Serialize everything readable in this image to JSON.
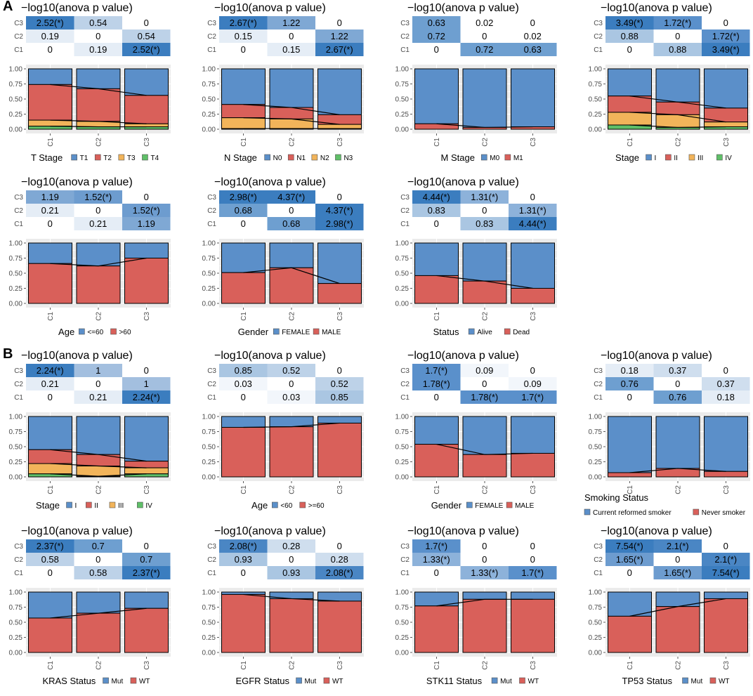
{
  "sections": [
    "A",
    "B"
  ],
  "colors": {
    "blue": "#5b8fc9",
    "red": "#d9605a",
    "orange": "#f2b45a",
    "green": "#5fbf68",
    "sig_dark": "#3b7dbf",
    "panel_bg": "#ebebeb",
    "grid": "#ffffff",
    "axis_text": "#4d4d4d",
    "connector": "#000000"
  },
  "common": {
    "heatmap_title": "−log10(anova p value)",
    "row_labels": [
      "C3",
      "C2",
      "C1"
    ],
    "x_categories": [
      "C1",
      "C2",
      "C3"
    ],
    "y_ticks": [
      "0.00",
      "0.25",
      "0.50",
      "0.75",
      "1.00"
    ]
  },
  "chart_data": [
    {
      "type": "heatmap+stacked_bar",
      "section": "A",
      "title": "−log10(anova p value)",
      "matrix": [
        [
          "2.52(*)",
          "0.54",
          "0"
        ],
        [
          "0.19",
          "0",
          "0.54"
        ],
        [
          "0",
          "0.19",
          "2.52(*)"
        ]
      ],
      "categories": [
        "C1",
        "C2",
        "C3"
      ],
      "legend_title": "T Stage",
      "legend_labels": [
        "T1",
        "T2",
        "T3",
        "T4"
      ],
      "stack_colors": [
        "#5b8fc9",
        "#d9605a",
        "#f2b45a",
        "#5fbf68"
      ],
      "series": [
        {
          "name": "T1",
          "values": [
            0.26,
            0.33,
            0.44
          ]
        },
        {
          "name": "T2",
          "values": [
            0.59,
            0.54,
            0.47
          ]
        },
        {
          "name": "T3",
          "values": [
            0.1,
            0.09,
            0.05
          ]
        },
        {
          "name": "T4",
          "values": [
            0.05,
            0.04,
            0.04
          ]
        }
      ],
      "ylim": [
        0,
        1
      ]
    },
    {
      "type": "heatmap+stacked_bar",
      "section": "A",
      "title": "−log10(anova p value)",
      "matrix": [
        [
          "2.67(*)",
          "1.22",
          "0"
        ],
        [
          "0.15",
          "0",
          "1.22"
        ],
        [
          "0",
          "0.15",
          "2.67(*)"
        ]
      ],
      "categories": [
        "C1",
        "C2",
        "C3"
      ],
      "legend_title": "N Stage",
      "legend_labels": [
        "N0",
        "N1",
        "N2",
        "N3"
      ],
      "stack_colors": [
        "#5b8fc9",
        "#d9605a",
        "#f2b45a",
        "#5fbf68"
      ],
      "series": [
        {
          "name": "N0",
          "values": [
            0.59,
            0.64,
            0.76
          ]
        },
        {
          "name": "N1",
          "values": [
            0.22,
            0.19,
            0.16
          ]
        },
        {
          "name": "N2",
          "values": [
            0.18,
            0.16,
            0.07
          ]
        },
        {
          "name": "N3",
          "values": [
            0.01,
            0.01,
            0.01
          ]
        }
      ],
      "ylim": [
        0,
        1
      ]
    },
    {
      "type": "heatmap+stacked_bar",
      "section": "A",
      "title": "−log10(anova p value)",
      "matrix": [
        [
          "0.63",
          "0.02",
          "0"
        ],
        [
          "0.72",
          "0",
          "0.02"
        ],
        [
          "0",
          "0.72",
          "0.63"
        ]
      ],
      "categories": [
        "C1",
        "C2",
        "C3"
      ],
      "legend_title": "M Stage",
      "legend_labels": [
        "M0",
        "M1"
      ],
      "stack_colors": [
        "#5b8fc9",
        "#d9605a"
      ],
      "series": [
        {
          "name": "M0",
          "values": [
            0.91,
            0.97,
            0.96
          ]
        },
        {
          "name": "M1",
          "values": [
            0.09,
            0.03,
            0.04
          ]
        }
      ],
      "ylim": [
        0,
        1
      ]
    },
    {
      "type": "heatmap+stacked_bar",
      "section": "A",
      "title": "−log10(anova p value)",
      "matrix": [
        [
          "3.49(*)",
          "1.72(*)",
          "0"
        ],
        [
          "0.88",
          "0",
          "1.72(*)"
        ],
        [
          "0",
          "0.88",
          "3.49(*)"
        ]
      ],
      "categories": [
        "C1",
        "C2",
        "C3"
      ],
      "legend_title": "Stage",
      "legend_labels": [
        "I",
        "II",
        "III",
        "IV"
      ],
      "stack_colors": [
        "#5b8fc9",
        "#d9605a",
        "#f2b45a",
        "#5fbf68"
      ],
      "series": [
        {
          "name": "I",
          "values": [
            0.45,
            0.55,
            0.65
          ]
        },
        {
          "name": "II",
          "values": [
            0.27,
            0.21,
            0.23
          ]
        },
        {
          "name": "III",
          "values": [
            0.21,
            0.21,
            0.08
          ]
        },
        {
          "name": "IV",
          "values": [
            0.07,
            0.03,
            0.04
          ]
        }
      ],
      "ylim": [
        0,
        1
      ]
    },
    {
      "type": "heatmap+stacked_bar",
      "section": "A",
      "title": "−log10(anova p value)",
      "matrix": [
        [
          "1.19",
          "1.52(*)",
          "0"
        ],
        [
          "0.21",
          "0",
          "1.52(*)"
        ],
        [
          "0",
          "0.21",
          "1.19"
        ]
      ],
      "categories": [
        "C1",
        "C2",
        "C3"
      ],
      "legend_title": "Age",
      "legend_labels": [
        "<=60",
        ">60"
      ],
      "stack_colors": [
        "#5b8fc9",
        "#d9605a"
      ],
      "series": [
        {
          "name": "<=60",
          "values": [
            0.34,
            0.38,
            0.25
          ]
        },
        {
          "name": ">60",
          "values": [
            0.66,
            0.62,
            0.75
          ]
        }
      ],
      "ylim": [
        0,
        1
      ]
    },
    {
      "type": "heatmap+stacked_bar",
      "section": "A",
      "title": "−log10(anova p value)",
      "matrix": [
        [
          "2.98(*)",
          "4.37(*)",
          "0"
        ],
        [
          "0.68",
          "0",
          "4.37(*)"
        ],
        [
          "0",
          "0.68",
          "2.98(*)"
        ]
      ],
      "categories": [
        "C1",
        "C2",
        "C3"
      ],
      "legend_title": "Gender",
      "legend_labels": [
        "FEMALE",
        "MALE"
      ],
      "stack_colors": [
        "#5b8fc9",
        "#d9605a"
      ],
      "series": [
        {
          "name": "FEMALE",
          "values": [
            0.49,
            0.41,
            0.67
          ]
        },
        {
          "name": "MALE",
          "values": [
            0.51,
            0.59,
            0.33
          ]
        }
      ],
      "ylim": [
        0,
        1
      ]
    },
    {
      "type": "heatmap+stacked_bar",
      "section": "A",
      "title": "−log10(anova p value)",
      "matrix": [
        [
          "4.44(*)",
          "1.31(*)",
          "0"
        ],
        [
          "0.83",
          "0",
          "1.31(*)"
        ],
        [
          "0",
          "0.83",
          "4.44(*)"
        ]
      ],
      "categories": [
        "C1",
        "C2",
        "C3"
      ],
      "legend_title": "Status",
      "legend_labels": [
        "Alive",
        "Dead"
      ],
      "stack_colors": [
        "#5b8fc9",
        "#d9605a"
      ],
      "series": [
        {
          "name": "Alive",
          "values": [
            0.54,
            0.63,
            0.75
          ]
        },
        {
          "name": "Dead",
          "values": [
            0.46,
            0.37,
            0.25
          ]
        }
      ],
      "ylim": [
        0,
        1
      ]
    },
    {
      "type": "heatmap+stacked_bar",
      "section": "B",
      "title": "−log10(anova p value)",
      "matrix": [
        [
          "2.24(*)",
          "1",
          "0"
        ],
        [
          "0.21",
          "0",
          "1"
        ],
        [
          "0",
          "0.21",
          "2.24(*)"
        ]
      ],
      "categories": [
        "C1",
        "C2",
        "C3"
      ],
      "legend_title": "Stage",
      "legend_labels": [
        "I",
        "II",
        "III",
        "IV"
      ],
      "stack_colors": [
        "#5b8fc9",
        "#d9605a",
        "#f2b45a",
        "#5fbf68"
      ],
      "series": [
        {
          "name": "I",
          "values": [
            0.55,
            0.63,
            0.74
          ]
        },
        {
          "name": "II",
          "values": [
            0.23,
            0.19,
            0.11
          ]
        },
        {
          "name": "III",
          "values": [
            0.17,
            0.17,
            0.1
          ]
        },
        {
          "name": "IV",
          "values": [
            0.05,
            0.01,
            0.05
          ]
        }
      ],
      "ylim": [
        0,
        1
      ]
    },
    {
      "type": "heatmap+stacked_bar",
      "section": "B",
      "title": "−log10(anova p value)",
      "matrix": [
        [
          "0.85",
          "0.52",
          "0"
        ],
        [
          "0.03",
          "0",
          "0.52"
        ],
        [
          "0",
          "0.03",
          "0.85"
        ]
      ],
      "categories": [
        "C1",
        "C2",
        "C3"
      ],
      "legend_title": "Age",
      "legend_labels": [
        "<60",
        ">=60"
      ],
      "stack_colors": [
        "#5b8fc9",
        "#d9605a"
      ],
      "series": [
        {
          "name": "<60",
          "values": [
            0.18,
            0.17,
            0.11
          ]
        },
        {
          "name": ">=60",
          "values": [
            0.82,
            0.83,
            0.89
          ]
        }
      ],
      "ylim": [
        0,
        1
      ]
    },
    {
      "type": "heatmap+stacked_bar",
      "section": "B",
      "title": "−log10(anova p value)",
      "matrix": [
        [
          "1.7(*)",
          "0.09",
          "0"
        ],
        [
          "1.78(*)",
          "0",
          "0.09"
        ],
        [
          "0",
          "1.78(*)",
          "1.7(*)"
        ]
      ],
      "categories": [
        "C1",
        "C2",
        "C3"
      ],
      "legend_title": "Gender",
      "legend_labels": [
        "FEMALE",
        "MALE"
      ],
      "stack_colors": [
        "#5b8fc9",
        "#d9605a"
      ],
      "series": [
        {
          "name": "FEMALE",
          "values": [
            0.46,
            0.63,
            0.61
          ]
        },
        {
          "name": "MALE",
          "values": [
            0.54,
            0.37,
            0.39
          ]
        }
      ],
      "ylim": [
        0,
        1
      ]
    },
    {
      "type": "heatmap+stacked_bar",
      "section": "B",
      "title": "−log10(anova p value)",
      "matrix": [
        [
          "0.18",
          "0.37",
          "0"
        ],
        [
          "0.76",
          "0",
          "0.37"
        ],
        [
          "0",
          "0.76",
          "0.18"
        ]
      ],
      "categories": [
        "C1",
        "C2",
        "C3"
      ],
      "legend_title": "Smoking Status",
      "legend_labels": [
        "Current reformed smoker",
        "Never smoker"
      ],
      "legend_layout": "stacked",
      "stack_colors": [
        "#5b8fc9",
        "#d9605a"
      ],
      "series": [
        {
          "name": "Current reformed smoker",
          "values": [
            0.93,
            0.86,
            0.91
          ]
        },
        {
          "name": "Never smoker",
          "values": [
            0.07,
            0.14,
            0.09
          ]
        }
      ],
      "ylim": [
        0,
        1
      ]
    },
    {
      "type": "heatmap+stacked_bar",
      "section": "B",
      "title": "−log10(anova p value)",
      "matrix": [
        [
          "2.37(*)",
          "0.7",
          "0"
        ],
        [
          "0.58",
          "0",
          "0.7"
        ],
        [
          "0",
          "0.58",
          "2.37(*)"
        ]
      ],
      "categories": [
        "C1",
        "C2",
        "C3"
      ],
      "legend_title": "KRAS Status",
      "legend_labels": [
        "Mut",
        "WT"
      ],
      "stack_colors": [
        "#5b8fc9",
        "#d9605a"
      ],
      "series": [
        {
          "name": "Mut",
          "values": [
            0.43,
            0.35,
            0.27
          ]
        },
        {
          "name": "WT",
          "values": [
            0.57,
            0.65,
            0.73
          ]
        }
      ],
      "ylim": [
        0,
        1
      ]
    },
    {
      "type": "heatmap+stacked_bar",
      "section": "B",
      "title": "−log10(anova p value)",
      "matrix": [
        [
          "2.08(*)",
          "0.28",
          "0"
        ],
        [
          "0.93",
          "0",
          "0.28"
        ],
        [
          "0",
          "0.93",
          "2.08(*)"
        ]
      ],
      "categories": [
        "C1",
        "C2",
        "C3"
      ],
      "legend_title": "EGFR Status",
      "legend_labels": [
        "Mut",
        "WT"
      ],
      "stack_colors": [
        "#5b8fc9",
        "#d9605a"
      ],
      "series": [
        {
          "name": "Mut",
          "values": [
            0.04,
            0.11,
            0.15
          ]
        },
        {
          "name": "WT",
          "values": [
            0.96,
            0.89,
            0.85
          ]
        }
      ],
      "ylim": [
        0,
        1
      ]
    },
    {
      "type": "heatmap+stacked_bar",
      "section": "B",
      "title": "−log10(anova p value)",
      "matrix": [
        [
          "1.7(*)",
          "0",
          "0"
        ],
        [
          "1.33(*)",
          "0",
          "0"
        ],
        [
          "0",
          "1.33(*)",
          "1.7(*)"
        ]
      ],
      "categories": [
        "C1",
        "C2",
        "C3"
      ],
      "legend_title": "STK11 Status",
      "legend_labels": [
        "Mut",
        "WT"
      ],
      "stack_colors": [
        "#5b8fc9",
        "#d9605a"
      ],
      "series": [
        {
          "name": "Mut",
          "values": [
            0.23,
            0.12,
            0.12
          ]
        },
        {
          "name": "WT",
          "values": [
            0.77,
            0.88,
            0.88
          ]
        }
      ],
      "ylim": [
        0,
        1
      ]
    },
    {
      "type": "heatmap+stacked_bar",
      "section": "B",
      "title": "−log10(anova p value)",
      "matrix": [
        [
          "7.54(*)",
          "2.1(*)",
          "0"
        ],
        [
          "1.65(*)",
          "0",
          "2.1(*)"
        ],
        [
          "0",
          "1.65(*)",
          "7.54(*)"
        ]
      ],
      "categories": [
        "C1",
        "C2",
        "C3"
      ],
      "legend_title": "TP53 Status",
      "legend_labels": [
        "Mut",
        "WT"
      ],
      "stack_colors": [
        "#5b8fc9",
        "#d9605a"
      ],
      "series": [
        {
          "name": "Mut",
          "values": [
            0.4,
            0.24,
            0.11
          ]
        },
        {
          "name": "WT",
          "values": [
            0.6,
            0.76,
            0.89
          ]
        }
      ],
      "ylim": [
        0,
        1
      ]
    }
  ]
}
